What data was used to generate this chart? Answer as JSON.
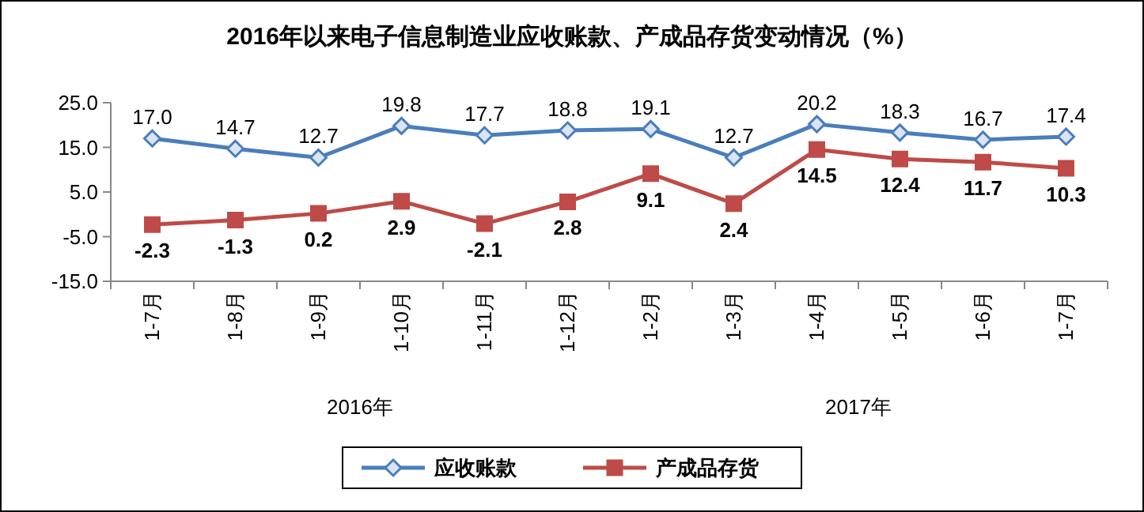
{
  "chart_data": {
    "type": "line",
    "title": "2016年以来电子信息制造业应收账款、产成品存货变动情况（%）",
    "categories": [
      "1-7月",
      "1-8月",
      "1-9月",
      "1-10月",
      "1-11月",
      "1-12月",
      "1-2月",
      "1-3月",
      "1-4月",
      "1-5月",
      "1-6月",
      "1-7月"
    ],
    "series": [
      {
        "name": "应收账款",
        "color": "#4a7ebb",
        "marker": "diamond",
        "values": [
          17.0,
          14.7,
          12.7,
          19.8,
          17.7,
          18.8,
          19.1,
          12.7,
          20.2,
          18.3,
          16.7,
          17.4
        ],
        "value_labels": [
          "17.0",
          "14.7",
          "12.7",
          "19.8",
          "17.7",
          "18.8",
          "19.1",
          "12.7",
          "20.2",
          "18.3",
          "16.7",
          "17.4"
        ]
      },
      {
        "name": "产成品存货",
        "color": "#be4b48",
        "marker": "square",
        "values": [
          -2.3,
          -1.3,
          0.2,
          2.9,
          -2.1,
          2.8,
          9.1,
          2.4,
          14.5,
          12.4,
          11.7,
          10.3
        ],
        "value_labels": [
          "-2.3",
          "-1.3",
          "0.2",
          "2.9",
          "-2.1",
          "2.8",
          "9.1",
          "2.4",
          "14.5",
          "12.4",
          "11.7",
          "10.3"
        ]
      }
    ],
    "ylim": [
      -15,
      25
    ],
    "yticks": [
      {
        "value": 25,
        "label": "25.0"
      },
      {
        "value": 15,
        "label": "15.0"
      },
      {
        "value": 5,
        "label": "5.0"
      },
      {
        "value": -5,
        "label": "-5.0"
      },
      {
        "value": -15,
        "label": "-15.0"
      }
    ],
    "grid": false,
    "legend": "bottom",
    "line_style": "solid",
    "annotations": [
      "2016年",
      "2017年"
    ]
  }
}
